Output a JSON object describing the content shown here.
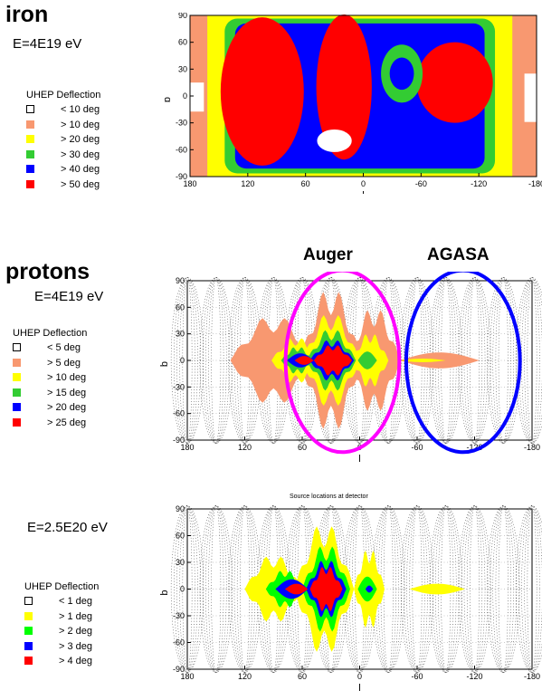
{
  "panels": [
    {
      "heading": "iron",
      "energy": "E=4E19 eV",
      "legend_title": "UHEP Deflection",
      "legend": [
        {
          "label": "< 10 deg",
          "color": "#ffffff"
        },
        {
          "label": "> 10 deg",
          "color": "#f89870"
        },
        {
          "label": "> 20 deg",
          "color": "#ffff00"
        },
        {
          "label": "> 30 deg",
          "color": "#33cc33"
        },
        {
          "label": "> 40 deg",
          "color": "#0000ff"
        },
        {
          "label": "> 50 deg",
          "color": "#ff0000"
        }
      ]
    },
    {
      "heading": "protons",
      "energy": "E=4E19 eV",
      "legend_title": "UHEP Deflection",
      "legend": [
        {
          "label": "< 5 deg",
          "color": "#ffffff"
        },
        {
          "label": "> 5 deg",
          "color": "#f89870"
        },
        {
          "label": "> 10 deg",
          "color": "#ffff00"
        },
        {
          "label": "> 15 deg",
          "color": "#33cc33"
        },
        {
          "label": "> 20 deg",
          "color": "#0000ff"
        },
        {
          "label": "> 25 deg",
          "color": "#ff0000"
        }
      ]
    },
    {
      "heading": "",
      "energy": "E=2.5E20 eV",
      "legend_title": "UHEP Deflection",
      "legend": [
        {
          "label": "< 1 deg",
          "color": "#ffffff"
        },
        {
          "label": "> 1 deg",
          "color": "#ffff00"
        },
        {
          "label": "> 2 deg",
          "color": "#00ff00"
        },
        {
          "label": "> 3 deg",
          "color": "#0000ff"
        },
        {
          "label": "> 4 deg",
          "color": "#ff0000"
        }
      ]
    }
  ],
  "annotations": {
    "auger": "Auger",
    "agasa": "AGASA",
    "auger_color": "#ff00ff",
    "agasa_color": "#0000ff",
    "plot3_title": "Source locations at detector"
  },
  "chart_data": [
    {
      "type": "heatmap",
      "xlabel": "l",
      "ylabel": "b",
      "x_ticks": [
        "180",
        "120",
        "60",
        "0",
        "-60",
        "-120",
        "-180"
      ],
      "y_ticks": [
        "90",
        "60",
        "30",
        "0",
        "-30",
        "-60",
        "-90"
      ],
      "xlim": [
        180,
        -180
      ],
      "ylim": [
        -90,
        90
      ]
    },
    {
      "type": "heatmap",
      "xlabel": "l",
      "ylabel": "b",
      "x_ticks": [
        "180",
        "120",
        "60",
        "0",
        "-60",
        "-120",
        "-180"
      ],
      "y_ticks": [
        "90",
        "60",
        "30",
        "0",
        "-30",
        "-60",
        "-90"
      ],
      "xlim": [
        180,
        -180
      ],
      "ylim": [
        -90,
        90
      ]
    },
    {
      "type": "heatmap",
      "title": "Source locations at detector",
      "xlabel": "l",
      "ylabel": "b",
      "x_ticks": [
        "180",
        "120",
        "60",
        "0",
        "-60",
        "-120",
        "-180"
      ],
      "y_ticks": [
        "90",
        "60",
        "30",
        "0",
        "-30",
        "-60",
        "-90"
      ],
      "xlim": [
        180,
        -180
      ],
      "ylim": [
        -90,
        90
      ]
    }
  ]
}
